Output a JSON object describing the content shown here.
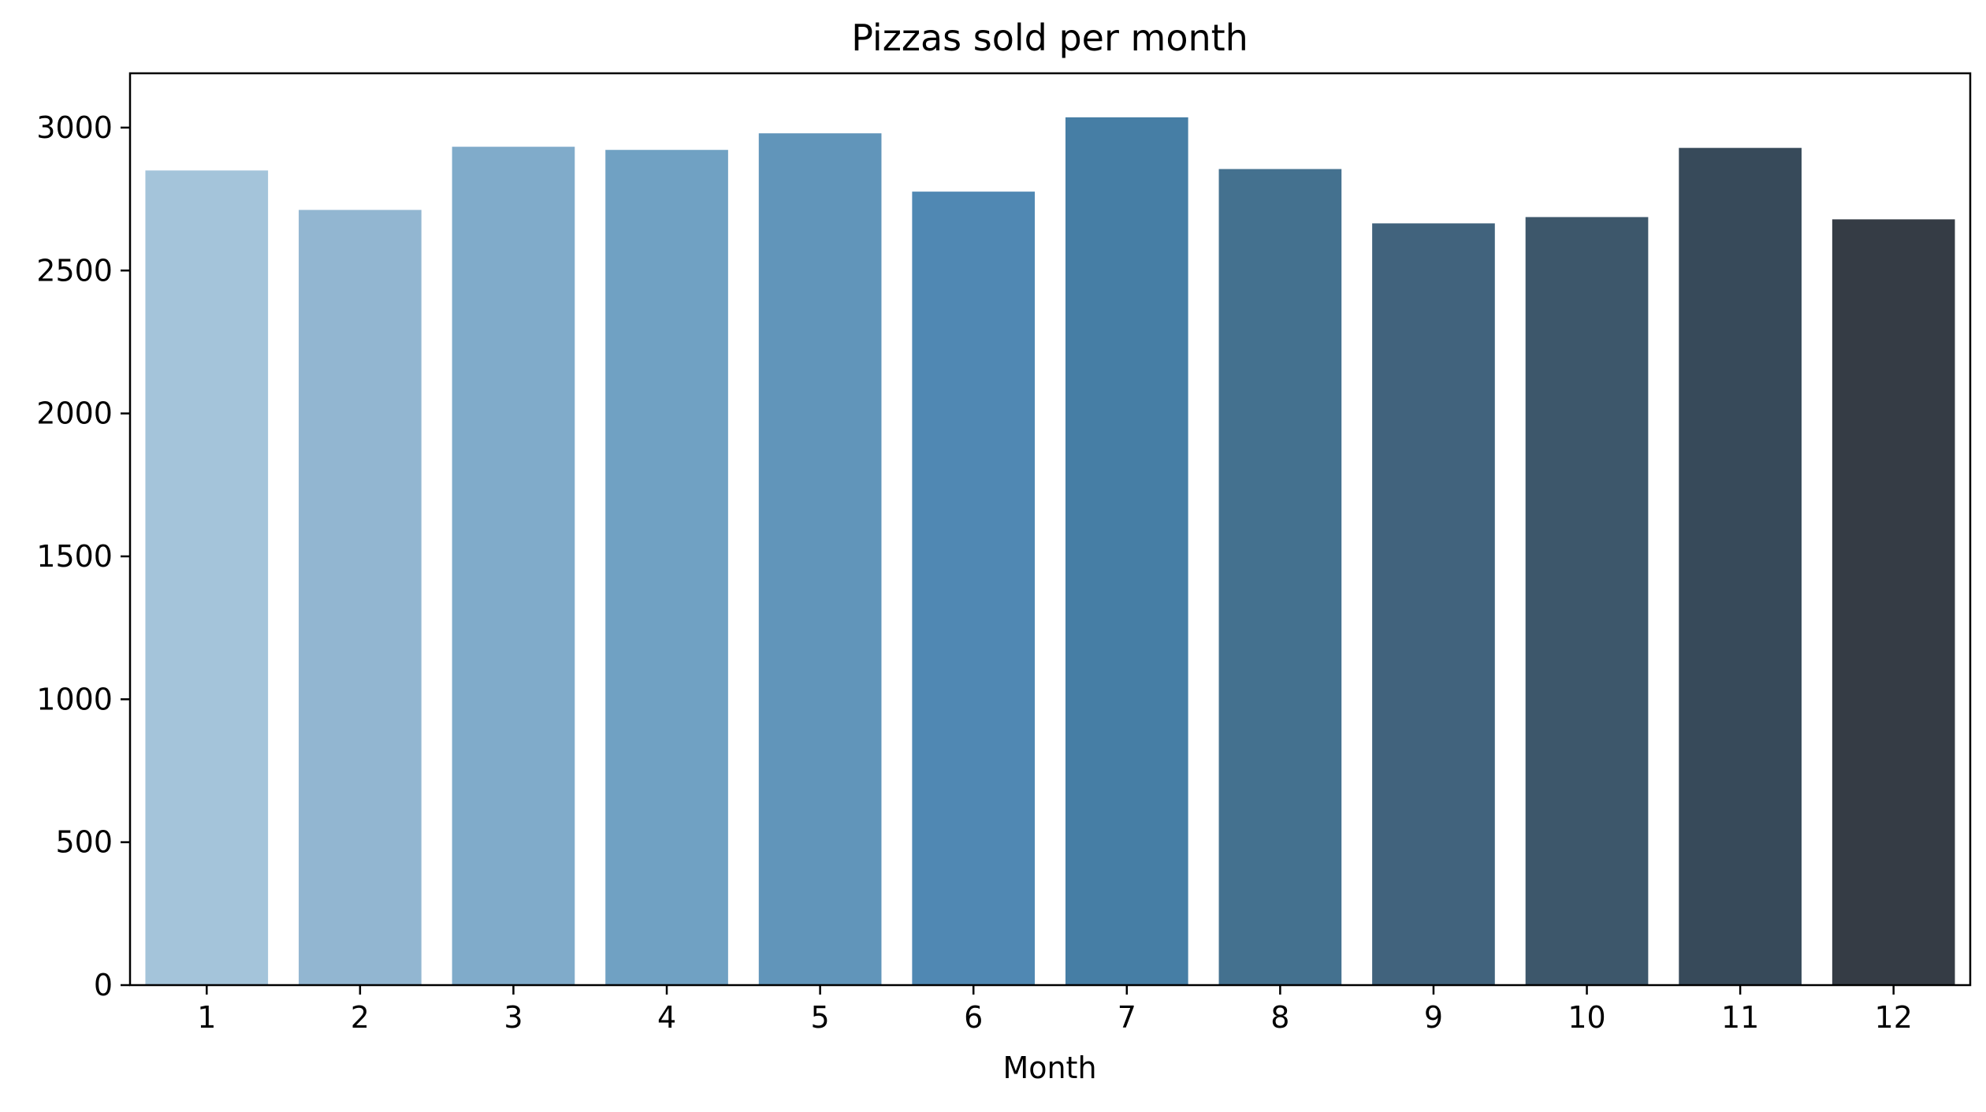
{
  "chart_data": {
    "type": "bar",
    "title": "Pizzas sold per month",
    "xlabel": "Month",
    "ylabel": "",
    "categories": [
      "1",
      "2",
      "3",
      "4",
      "5",
      "6",
      "7",
      "8",
      "9",
      "10",
      "11",
      "12"
    ],
    "values": [
      2850,
      2712,
      2933,
      2922,
      2980,
      2776,
      3036,
      2855,
      2665,
      2687,
      2929,
      2679
    ],
    "ylim": [
      0,
      3190
    ],
    "yticks": [
      0,
      500,
      1000,
      1500,
      2000,
      2500,
      3000
    ],
    "grid": false,
    "colors": [
      "#a4c4da",
      "#92b6d1",
      "#80abca",
      "#70a1c3",
      "#6195ba",
      "#5088b3",
      "#467ea5",
      "#44718f",
      "#41637d",
      "#3d576b",
      "#374a5a",
      "#353c45"
    ]
  }
}
